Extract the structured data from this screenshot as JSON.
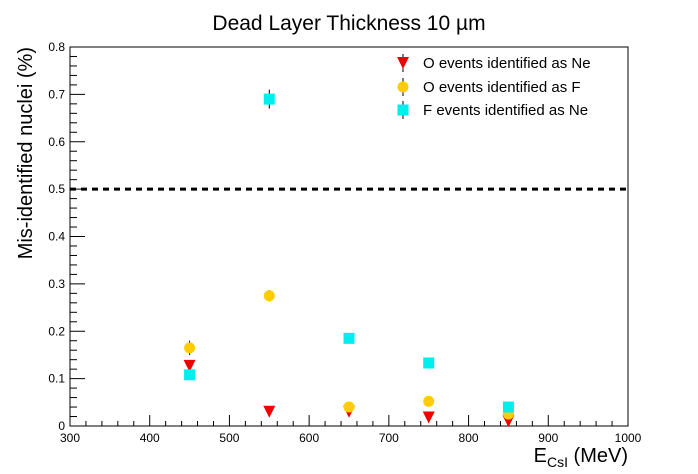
{
  "chart_data": {
    "type": "scatter",
    "title": "Dead Layer Thickness 10 µm",
    "xlabel_main": "E",
    "xlabel_sub": "CsI",
    "xlabel_unit": " (MeV)",
    "ylabel": "Mis-identified nuclei (%)",
    "xlim": [
      300,
      1000
    ],
    "ylim": [
      0,
      0.8
    ],
    "x_ticks": [
      "300",
      "400",
      "500",
      "600",
      "700",
      "800",
      "900",
      "1000"
    ],
    "y_ticks": [
      "0",
      "0.1",
      "0.2",
      "0.3",
      "0.4",
      "0.5",
      "0.6",
      "0.7",
      "0.8"
    ],
    "reference_line": {
      "y": 0.5,
      "style": "dashed",
      "color": "#000000"
    },
    "grid": false,
    "legend_position": "top-right",
    "series": [
      {
        "name": "O events identified as Ne",
        "marker": "triangle-down",
        "color": "#ee0000",
        "points": [
          {
            "x": 450,
            "y": 0.127,
            "err": 0.008
          },
          {
            "x": 550,
            "y": 0.03,
            "err": 0.003
          },
          {
            "x": 650,
            "y": 0.03,
            "err": 0.003
          },
          {
            "x": 750,
            "y": 0.018,
            "err": 0.003
          },
          {
            "x": 850,
            "y": 0.01,
            "err": 0.002
          }
        ]
      },
      {
        "name": "O events identified as F",
        "marker": "circle",
        "color": "#ffcc00",
        "points": [
          {
            "x": 450,
            "y": 0.165,
            "err": 0.015
          },
          {
            "x": 550,
            "y": 0.275,
            "err": 0.012
          },
          {
            "x": 650,
            "y": 0.04,
            "err": 0.004
          },
          {
            "x": 750,
            "y": 0.052,
            "err": 0.004
          },
          {
            "x": 850,
            "y": 0.025,
            "err": 0.003
          }
        ]
      },
      {
        "name": "F events identified as Ne",
        "marker": "square",
        "color": "#00eeee",
        "points": [
          {
            "x": 450,
            "y": 0.108,
            "err": 0.01
          },
          {
            "x": 550,
            "y": 0.69,
            "err": 0.02
          },
          {
            "x": 650,
            "y": 0.185,
            "err": 0.005
          },
          {
            "x": 750,
            "y": 0.133,
            "err": 0.004
          },
          {
            "x": 850,
            "y": 0.04,
            "err": 0.003
          }
        ]
      }
    ]
  }
}
